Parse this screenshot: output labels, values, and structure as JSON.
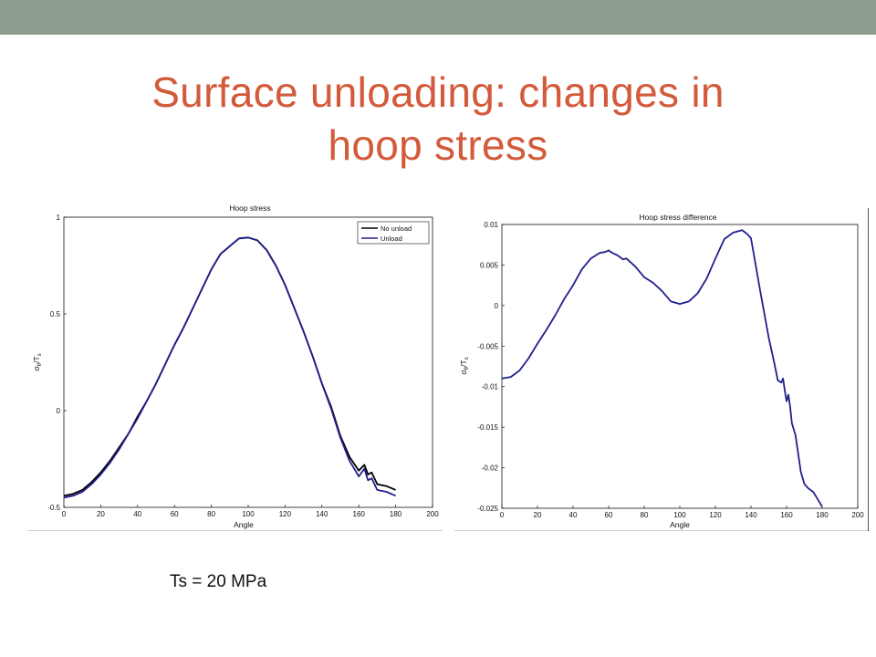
{
  "slide": {
    "title_line1": "Surface unloading: changes in",
    "title_line2": "hoop stress",
    "footnote": "Ts = 20 MPa"
  },
  "colors": {
    "topbar": "#8f9e8f",
    "title": "#d35a3a",
    "no_unload": "#000000",
    "unload": "#1f1f8c"
  },
  "chart_data": [
    {
      "type": "line",
      "title": "Hoop stress",
      "xlabel": "Angle",
      "ylabel_main": "σ",
      "ylabel_sub1": "θ",
      "ylabel_mid": "/T",
      "ylabel_sub2": "s",
      "xlim": [
        0,
        200
      ],
      "ylim": [
        -0.5,
        1
      ],
      "xticks": [
        0,
        20,
        40,
        60,
        80,
        100,
        120,
        140,
        160,
        180,
        200
      ],
      "yticks": [
        -0.5,
        0,
        0.5,
        1
      ],
      "ytick_labels": [
        "-0.5",
        "0",
        "0.5",
        "1"
      ],
      "legend_position": "top-right",
      "legend": [
        "No unload",
        "Unload"
      ],
      "grid": false,
      "series": [
        {
          "name": "No unload",
          "color": "#000000",
          "x": [
            0,
            5,
            10,
            15,
            20,
            25,
            30,
            35,
            40,
            45,
            50,
            55,
            60,
            65,
            70,
            75,
            80,
            85,
            90,
            95,
            100,
            105,
            110,
            115,
            120,
            125,
            130,
            135,
            140,
            145,
            150,
            155,
            160,
            163,
            165,
            167,
            170,
            175,
            180
          ],
          "y": [
            -0.44,
            -0.43,
            -0.41,
            -0.37,
            -0.32,
            -0.26,
            -0.19,
            -0.12,
            -0.03,
            0.05,
            0.14,
            0.24,
            0.34,
            0.43,
            0.53,
            0.63,
            0.73,
            0.81,
            0.85,
            0.89,
            0.895,
            0.88,
            0.83,
            0.75,
            0.65,
            0.53,
            0.41,
            0.28,
            0.14,
            0.02,
            -0.13,
            -0.24,
            -0.31,
            -0.28,
            -0.33,
            -0.32,
            -0.38,
            -0.39,
            -0.41
          ]
        },
        {
          "name": "Unload",
          "color": "#1f1f8c",
          "x": [
            0,
            5,
            10,
            15,
            20,
            25,
            30,
            35,
            40,
            45,
            50,
            55,
            60,
            65,
            70,
            75,
            80,
            85,
            90,
            95,
            100,
            105,
            110,
            115,
            120,
            125,
            130,
            135,
            140,
            145,
            150,
            155,
            160,
            163,
            165,
            167,
            170,
            175,
            180
          ],
          "y": [
            -0.45,
            -0.44,
            -0.42,
            -0.38,
            -0.33,
            -0.27,
            -0.2,
            -0.12,
            -0.04,
            0.05,
            0.14,
            0.24,
            0.34,
            0.43,
            0.53,
            0.63,
            0.73,
            0.81,
            0.85,
            0.89,
            0.895,
            0.88,
            0.83,
            0.75,
            0.65,
            0.53,
            0.41,
            0.28,
            0.14,
            0.01,
            -0.14,
            -0.26,
            -0.34,
            -0.3,
            -0.36,
            -0.35,
            -0.41,
            -0.42,
            -0.44
          ]
        }
      ]
    },
    {
      "type": "line",
      "title": "Hoop stress difference",
      "xlabel": "Angle",
      "ylabel_main": "σ",
      "ylabel_sub1": "θ",
      "ylabel_mid": "/T",
      "ylabel_sub2": "s",
      "xlim": [
        0,
        200
      ],
      "ylim": [
        -0.025,
        0.01
      ],
      "xticks": [
        0,
        20,
        40,
        60,
        80,
        100,
        120,
        140,
        160,
        180,
        200
      ],
      "yticks": [
        -0.025,
        -0.02,
        -0.015,
        -0.01,
        -0.005,
        0,
        0.005,
        0.01
      ],
      "ytick_labels": [
        "-0.025",
        "-0.02",
        "-0.015",
        "-0.01",
        "-0.005",
        "0",
        "0.005",
        "0.01"
      ],
      "grid": false,
      "series": [
        {
          "name": "",
          "color": "#1f1f8c",
          "x": [
            0,
            5,
            10,
            15,
            20,
            25,
            30,
            35,
            40,
            45,
            50,
            55,
            58,
            60,
            62,
            65,
            68,
            70,
            75,
            80,
            85,
            90,
            95,
            100,
            105,
            110,
            115,
            120,
            125,
            130,
            135,
            138,
            140,
            145,
            150,
            153,
            155,
            157,
            158,
            159,
            160,
            161,
            162,
            163,
            165,
            168,
            170,
            172,
            175,
            180
          ],
          "y": [
            -0.009,
            -0.0088,
            -0.008,
            -0.0065,
            -0.0047,
            -0.003,
            -0.0012,
            0.0008,
            0.0025,
            0.0045,
            0.0058,
            0.0065,
            0.0066,
            0.0068,
            0.0065,
            0.0062,
            0.0057,
            0.0058,
            0.0048,
            0.0035,
            0.0028,
            0.0018,
            0.0005,
            0.0002,
            0.0005,
            0.0015,
            0.0033,
            0.0058,
            0.0082,
            0.009,
            0.0093,
            0.0088,
            0.0083,
            0.002,
            -0.004,
            -0.007,
            -0.0092,
            -0.0095,
            -0.009,
            -0.0105,
            -0.0118,
            -0.011,
            -0.0125,
            -0.0145,
            -0.016,
            -0.0205,
            -0.022,
            -0.0225,
            -0.023,
            -0.0248
          ]
        }
      ]
    }
  ]
}
